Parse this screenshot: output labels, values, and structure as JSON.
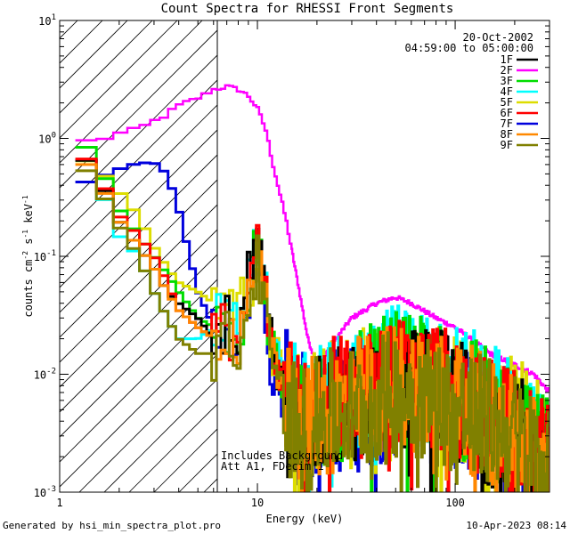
{
  "chart_data": {
    "type": "line",
    "title": "Count Spectra for RHESSI Front Segments",
    "xlabel": "Energy (keV)",
    "ylabel_main": "counts cm",
    "ylabel_exp1": "-2",
    "ylabel_mid": " s",
    "ylabel_exp2": "-1",
    "ylabel_end": " keV",
    "ylabel_exp3": "-1",
    "xscale": "log",
    "yscale": "log",
    "xlim": [
      1,
      300
    ],
    "ylim": [
      0.001,
      10
    ],
    "x_ticks": [
      {
        "value": 1,
        "label": "1"
      },
      {
        "value": 10,
        "label": "10"
      },
      {
        "value": 100,
        "label": "100"
      }
    ],
    "y_ticks": [
      {
        "value": 0.001,
        "base": "10",
        "exp": "-3"
      },
      {
        "value": 0.01,
        "base": "10",
        "exp": "-2"
      },
      {
        "value": 0.1,
        "base": "10",
        "exp": "-1"
      },
      {
        "value": 1,
        "base": "10",
        "exp": "0"
      },
      {
        "value": 10,
        "base": "10",
        "exp": "1"
      }
    ],
    "hatched_region_keV": [
      1,
      6
    ],
    "legend_position": "top-right",
    "date": "20-Oct-2002",
    "time_range": "04:59:00 to 05:00:00",
    "annotation_1": "Includes Background",
    "annotation_2": "Att A1, FDecim 1",
    "footer_left": "Generated by hsi_min_spectra_plot.pro",
    "footer_right": "10-Apr-2023 08:14",
    "anchor_energies": [
      1.2,
      1.5,
      2,
      2.5,
      3,
      3.5,
      4,
      5,
      6,
      7,
      8,
      9,
      10,
      11,
      12,
      14,
      16,
      18,
      20,
      25,
      30,
      40,
      50,
      60,
      80,
      100,
      150,
      200,
      250,
      300
    ],
    "series": [
      {
        "name": "1F",
        "color": "#000000",
        "values": [
          0.8,
          0.55,
          0.2,
          0.12,
          0.08,
          0.05,
          0.04,
          0.03,
          0.02,
          0.03,
          0.02,
          0.06,
          0.12,
          0.04,
          0.012,
          0.006,
          0.005,
          0.004,
          0.005,
          0.005,
          0.005,
          0.006,
          0.008,
          0.008,
          0.007,
          0.006,
          0.004,
          0.003,
          0.002,
          0.0015
        ]
      },
      {
        "name": "2F",
        "color": "#ff00ff",
        "values": [
          0.95,
          0.95,
          1.1,
          1.2,
          1.4,
          1.6,
          1.9,
          2.2,
          2.6,
          2.75,
          2.6,
          2.3,
          1.8,
          1.2,
          0.6,
          0.2,
          0.06,
          0.02,
          0.012,
          0.02,
          0.03,
          0.04,
          0.045,
          0.04,
          0.03,
          0.025,
          0.015,
          0.012,
          0.01,
          0.007
        ]
      },
      {
        "name": "3F",
        "color": "#00dd00",
        "values": [
          1.05,
          0.7,
          0.25,
          0.15,
          0.1,
          0.07,
          0.05,
          0.03,
          0.025,
          0.025,
          0.02,
          0.05,
          0.12,
          0.04,
          0.013,
          0.007,
          0.005,
          0.004,
          0.005,
          0.006,
          0.006,
          0.008,
          0.01,
          0.009,
          0.008,
          0.007,
          0.005,
          0.003,
          0.002,
          0.002
        ]
      },
      {
        "name": "4F",
        "color": "#00ffff",
        "values": [
          0.9,
          0.5,
          0.15,
          0.1,
          0.05,
          0.03,
          0.02,
          0.02,
          0.025,
          0.03,
          0.025,
          0.07,
          0.15,
          0.05,
          0.015,
          0.008,
          0.006,
          0.006,
          0.006,
          0.007,
          0.008,
          0.01,
          0.011,
          0.01,
          0.009,
          0.008,
          0.006,
          0.004,
          0.003,
          0.002
        ]
      },
      {
        "name": "5F",
        "color": "#dddd00",
        "values": [
          0.7,
          0.6,
          0.35,
          0.22,
          0.12,
          0.08,
          0.06,
          0.05,
          0.04,
          0.045,
          0.04,
          0.05,
          0.1,
          0.04,
          0.015,
          0.008,
          0.005,
          0.004,
          0.005,
          0.006,
          0.007,
          0.009,
          0.01,
          0.009,
          0.008,
          0.007,
          0.005,
          0.004,
          0.003,
          0.002
        ]
      },
      {
        "name": "6F",
        "color": "#ff0000",
        "values": [
          0.85,
          0.55,
          0.22,
          0.15,
          0.1,
          0.06,
          0.035,
          0.025,
          0.02,
          0.025,
          0.02,
          0.05,
          0.11,
          0.04,
          0.012,
          0.007,
          0.005,
          0.004,
          0.005,
          0.006,
          0.006,
          0.007,
          0.009,
          0.008,
          0.008,
          0.006,
          0.004,
          0.003,
          0.002,
          0.0015
        ]
      },
      {
        "name": "7F",
        "color": "#0000dd",
        "values": [
          0.4,
          0.45,
          0.55,
          0.62,
          0.62,
          0.5,
          0.25,
          0.05,
          0.025,
          0.02,
          0.015,
          0.03,
          0.08,
          0.03,
          0.01,
          0.007,
          0.005,
          0.004,
          0.004,
          0.005,
          0.005,
          0.006,
          0.007,
          0.007,
          0.006,
          0.005,
          0.004,
          0.003,
          0.002,
          0.0015
        ]
      },
      {
        "name": "8F",
        "color": "#ff8800",
        "values": [
          0.75,
          0.5,
          0.2,
          0.12,
          0.08,
          0.05,
          0.035,
          0.025,
          0.02,
          0.025,
          0.02,
          0.05,
          0.1,
          0.035,
          0.012,
          0.006,
          0.004,
          0.004,
          0.004,
          0.005,
          0.006,
          0.007,
          0.008,
          0.008,
          0.007,
          0.006,
          0.004,
          0.003,
          0.002,
          0.0015
        ]
      },
      {
        "name": "9F",
        "color": "#808000",
        "values": [
          0.65,
          0.45,
          0.18,
          0.1,
          0.05,
          0.03,
          0.02,
          0.015,
          0.015,
          0.02,
          0.015,
          0.04,
          0.09,
          0.03,
          0.01,
          0.005,
          0.004,
          0.003,
          0.004,
          0.005,
          0.005,
          0.006,
          0.007,
          0.007,
          0.006,
          0.005,
          0.004,
          0.003,
          0.002,
          0.0015
        ]
      }
    ]
  }
}
